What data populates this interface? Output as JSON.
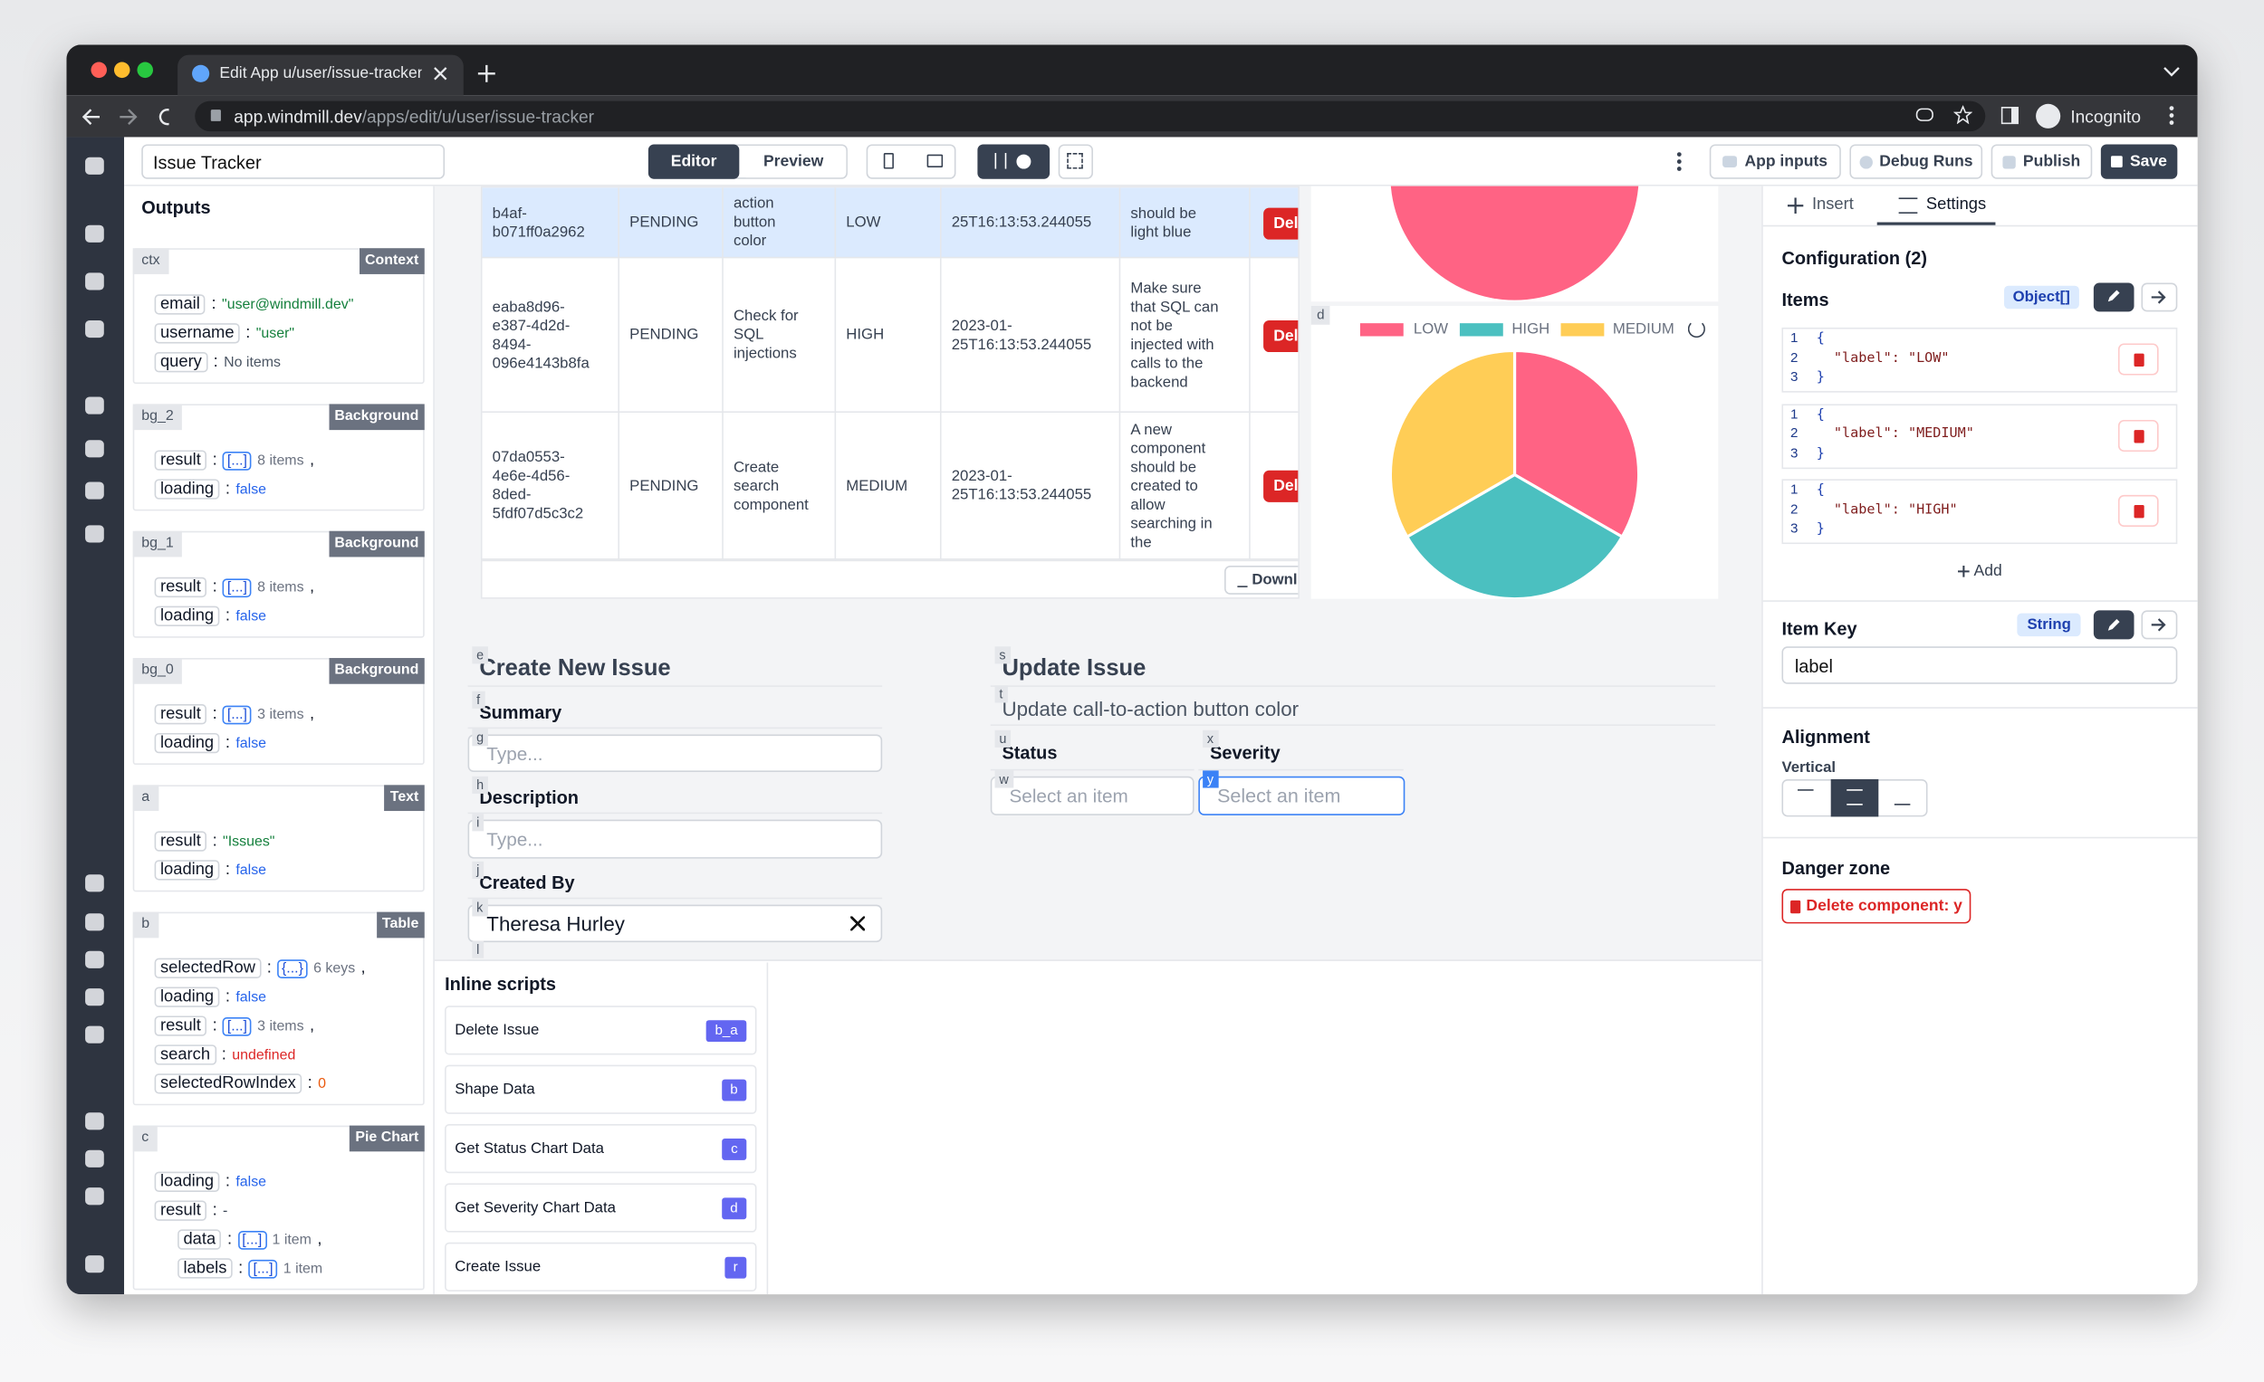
{
  "browser": {
    "tab_title": "Edit App u/user/issue-tracker |",
    "url_host": "app.windmill.dev",
    "url_path": "/apps/edit/u/user/issue-tracker",
    "profile": "Incognito"
  },
  "toolbar": {
    "app_name": "Issue Tracker",
    "editor": "Editor",
    "preview": "Preview",
    "app_inputs": "App inputs",
    "debug_runs": "Debug Runs",
    "publish": "Publish",
    "save": "Save"
  },
  "outputs": {
    "title": "Outputs",
    "separator": ":",
    "panels": [
      {
        "id": "ctx",
        "kind": "Context",
        "rows": [
          {
            "key": "email",
            "value": "\"user@windmill.dev\"",
            "color": "#15803d"
          },
          {
            "key": "username",
            "value": "\"user\"",
            "color": "#15803d"
          },
          {
            "key": "query",
            "value": "No items",
            "color": "#4b5563"
          }
        ]
      },
      {
        "id": "bg_2",
        "kind": "Background",
        "rows": [
          {
            "key": "result",
            "badge": "[...]",
            "value": "8 items",
            "suffix": ",",
            "color": "#6b7280"
          },
          {
            "key": "loading",
            "value": "false",
            "color": "#2563eb"
          }
        ]
      },
      {
        "id": "bg_1",
        "kind": "Background",
        "rows": [
          {
            "key": "result",
            "badge": "[...]",
            "value": "8 items",
            "suffix": ",",
            "color": "#6b7280"
          },
          {
            "key": "loading",
            "value": "false",
            "color": "#2563eb"
          }
        ]
      },
      {
        "id": "bg_0",
        "kind": "Background",
        "rows": [
          {
            "key": "result",
            "badge": "[...]",
            "value": "3 items",
            "suffix": ",",
            "color": "#6b7280"
          },
          {
            "key": "loading",
            "value": "false",
            "color": "#2563eb"
          }
        ]
      },
      {
        "id": "a",
        "kind": "Text",
        "rows": [
          {
            "key": "result",
            "value": "\"Issues\"",
            "color": "#15803d"
          },
          {
            "key": "loading",
            "value": "false",
            "color": "#2563eb"
          }
        ]
      },
      {
        "id": "b",
        "kind": "Table",
        "rows": [
          {
            "key": "selectedRow",
            "badge": "{...}",
            "value": "6 keys",
            "suffix": ",",
            "color": "#6b7280"
          },
          {
            "key": "loading",
            "value": "false",
            "color": "#2563eb"
          },
          {
            "key": "result",
            "badge": "[...]",
            "value": "3 items",
            "suffix": ",",
            "color": "#6b7280"
          },
          {
            "key": "search",
            "value": "undefined",
            "color": "#dc2626"
          },
          {
            "key": "selectedRowIndex",
            "value": "0",
            "color": "#ea580c"
          }
        ]
      },
      {
        "id": "c",
        "kind": "Pie Chart",
        "rows": [
          {
            "key": "loading",
            "value": "false",
            "color": "#2563eb"
          },
          {
            "key": "result",
            "value": "-",
            "color": "#374151",
            "children": [
              {
                "key": "data",
                "badge": "[...]",
                "value": "1 item",
                "suffix": ",",
                "color": "#6b7280"
              },
              {
                "key": "labels",
                "badge": "[...]",
                "value": "1 item",
                "color": "#6b7280"
              }
            ]
          }
        ]
      }
    ]
  },
  "table": {
    "rows": [
      [
        "b4af-\nb071ff0a2962",
        "PENDING",
        "action\nbutton\ncolor",
        "LOW",
        "25T16:13:53.244055",
        "should be\nlight blue",
        "Del"
      ],
      [
        "eaba8d96-\ne387-4d2d-\n8494-\n096e4143b8fa",
        "PENDING",
        "Check for\nSQL\ninjections",
        "HIGH",
        "2023-01-\n25T16:13:53.244055",
        "Make sure\nthat SQL can\nnot be\ninjected with\ncalls to the\nbackend",
        "Del"
      ],
      [
        "07da0553-\n4e6e-4d56-\n8ded-\n5fdf07d5c3c2",
        "PENDING",
        "Create\nsearch\ncomponent",
        "MEDIUM",
        "2023-01-\n25T16:13:53.244055",
        "A new\ncomponent\nshould be\ncreated to\nallow\nsearching in\nthe",
        "Del"
      ]
    ],
    "download": "Downl"
  },
  "severity_chart": {
    "id": "d",
    "labels": [
      "LOW",
      "HIGH",
      "MEDIUM"
    ],
    "colors": [
      "#ff6384",
      "#4bc0c0",
      "#ffcd56"
    ],
    "values": [
      1,
      1,
      1
    ]
  },
  "forms": {
    "left": [
      {
        "id": "e",
        "text": "Create New Issue"
      },
      {
        "id": "f",
        "text": "Summary"
      },
      {
        "id": "g",
        "placeholder": "Type..."
      },
      {
        "id": "h",
        "text": "Description"
      },
      {
        "id": "i",
        "placeholder": "Type..."
      },
      {
        "id": "j",
        "text": "Created By"
      },
      {
        "id": "k",
        "value": "Theresa Hurley"
      },
      {
        "id": "l"
      }
    ],
    "right": [
      {
        "id": "s",
        "text": "Update Issue"
      },
      {
        "id": "t",
        "text": "Update call-to-action button color"
      },
      {
        "id": "u",
        "text": "Status"
      },
      {
        "id": "x",
        "text": "Severity"
      },
      {
        "id": "w",
        "placeholder": "Select an item"
      },
      {
        "id": "y",
        "placeholder": "Select an item"
      }
    ]
  },
  "inline_scripts": {
    "title": "Inline scripts",
    "items": [
      {
        "name": "Delete Issue",
        "id": "b_a"
      },
      {
        "name": "Shape Data",
        "id": "b"
      },
      {
        "name": "Get Status Chart Data",
        "id": "c"
      },
      {
        "name": "Get Severity Chart Data",
        "id": "d"
      },
      {
        "name": "Create Issue",
        "id": "r"
      }
    ]
  },
  "settings": {
    "tabs": [
      "Insert",
      "Settings"
    ],
    "configuration": "Configuration (2)",
    "items_label": "Items",
    "items_type": "Object[]",
    "line_numbers": [
      "1",
      "2",
      "3"
    ],
    "open_brace": "{",
    "close_brace": "}",
    "items": [
      "\"label\": \"LOW\"",
      "\"label\": \"MEDIUM\"",
      "\"label\": \"HIGH\""
    ],
    "add": "Add",
    "item_key_label": "Item Key",
    "item_key_type": "String",
    "item_key_value": "label",
    "alignment": "Alignment",
    "vertical": "Vertical",
    "danger_zone": "Danger zone",
    "delete_button": "Delete component: y"
  }
}
